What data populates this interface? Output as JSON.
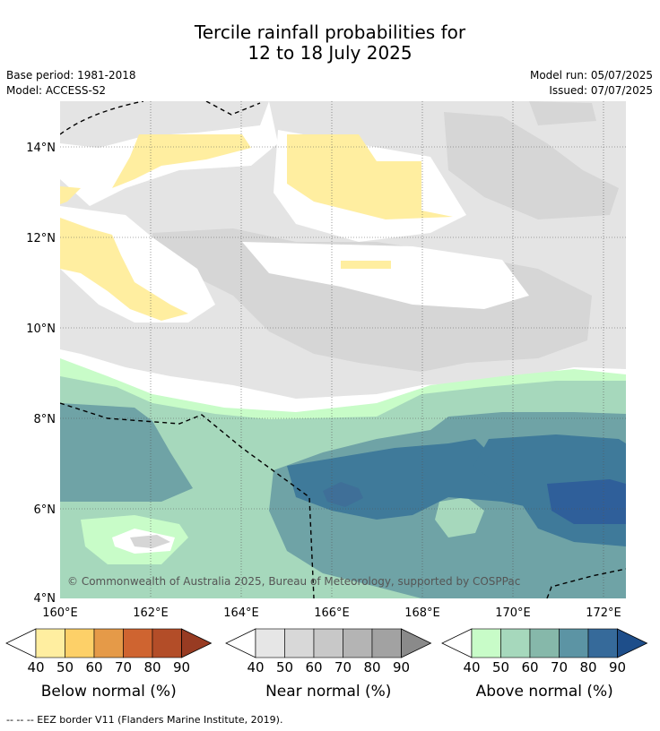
{
  "title_line1": "Tercile rainfall probabilities for",
  "title_line2": "12 to 18 July 2025",
  "base_period": "Base period: 1981-2018",
  "model": "Model: ACCESS-S2",
  "model_run": "Model run: 05/07/2025",
  "issued": "Issued: 07/07/2025",
  "copyright": "© Commonwealth of Australia 2025, Bureau of Meteorology, supported by COSPPac",
  "lat_labels": [
    "14°N",
    "12°N",
    "10°N",
    "8°N",
    "6°N",
    "4°N"
  ],
  "lon_labels": [
    "160°E",
    "162°E",
    "164°E",
    "166°E",
    "168°E",
    "170°E",
    "172°E"
  ],
  "colorbars": [
    {
      "label": "Below normal (%)",
      "ticks": [
        "40",
        "50",
        "60",
        "70",
        "80",
        "90"
      ],
      "colors": [
        "#ffeea0",
        "#fdd068",
        "#e59a48",
        "#cf6430",
        "#b34d28",
        "#983b22"
      ]
    },
    {
      "label": "Near normal (%)",
      "ticks": [
        "40",
        "50",
        "60",
        "70",
        "80",
        "90"
      ],
      "colors": [
        "#e6e6e6",
        "#d8d8d8",
        "#c8c8c8",
        "#b4b4b4",
        "#a2a2a2",
        "#8a8a8a"
      ]
    },
    {
      "label": "Above normal (%)",
      "ticks": [
        "40",
        "50",
        "60",
        "70",
        "80",
        "90"
      ],
      "colors": [
        "#c8fcc8",
        "#a6d8bc",
        "#86b8aa",
        "#5c94a4",
        "#366a9a",
        "#1e4e8a"
      ]
    }
  ],
  "footer": "--  --  -- EEZ border V11 (Flanders Marine Institute, 2019)."
}
